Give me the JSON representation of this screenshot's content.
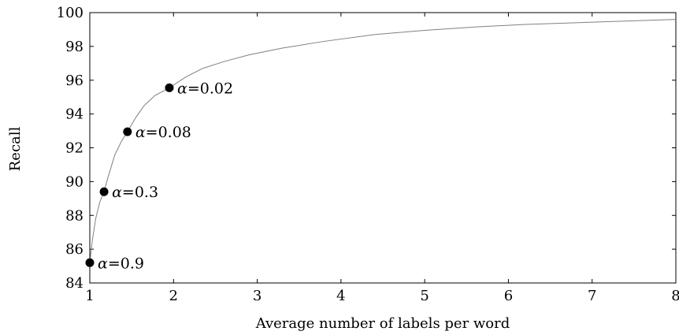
{
  "chart_data": {
    "type": "line",
    "title": "",
    "xlabel": "Average number of labels per word",
    "ylabel": "Recall",
    "xlim": [
      1,
      8
    ],
    "ylim": [
      84,
      100
    ],
    "xticks": [
      1,
      2,
      3,
      4,
      5,
      6,
      7,
      8
    ],
    "yticks": [
      84,
      86,
      88,
      90,
      92,
      94,
      96,
      98,
      100
    ],
    "grid": false,
    "legend": "none",
    "series": [
      {
        "x": [
          1.0,
          1.03,
          1.07,
          1.12,
          1.17,
          1.22,
          1.3,
          1.38,
          1.45,
          1.55,
          1.65,
          1.78,
          1.95,
          2.15,
          2.35,
          2.6,
          2.9,
          3.3,
          3.8,
          4.4,
          5.0,
          5.6,
          6.2,
          6.8,
          7.4,
          8.0
        ],
        "y": [
          85.2,
          86.5,
          87.8,
          88.8,
          89.4,
          90.3,
          91.6,
          92.4,
          92.95,
          93.8,
          94.5,
          95.1,
          95.55,
          96.2,
          96.7,
          97.1,
          97.5,
          97.9,
          98.3,
          98.7,
          98.95,
          99.15,
          99.3,
          99.4,
          99.5,
          99.6
        ],
        "color": "#808080"
      }
    ],
    "points": [
      {
        "x": 1.0,
        "y": 85.2,
        "label_prefix": "α",
        "label_value": "=0.9"
      },
      {
        "x": 1.17,
        "y": 89.4,
        "label_prefix": "α",
        "label_value": "=0.3"
      },
      {
        "x": 1.45,
        "y": 92.95,
        "label_prefix": "α",
        "label_value": "=0.08"
      },
      {
        "x": 1.95,
        "y": 95.55,
        "label_prefix": "α",
        "label_value": "=0.02"
      }
    ]
  }
}
